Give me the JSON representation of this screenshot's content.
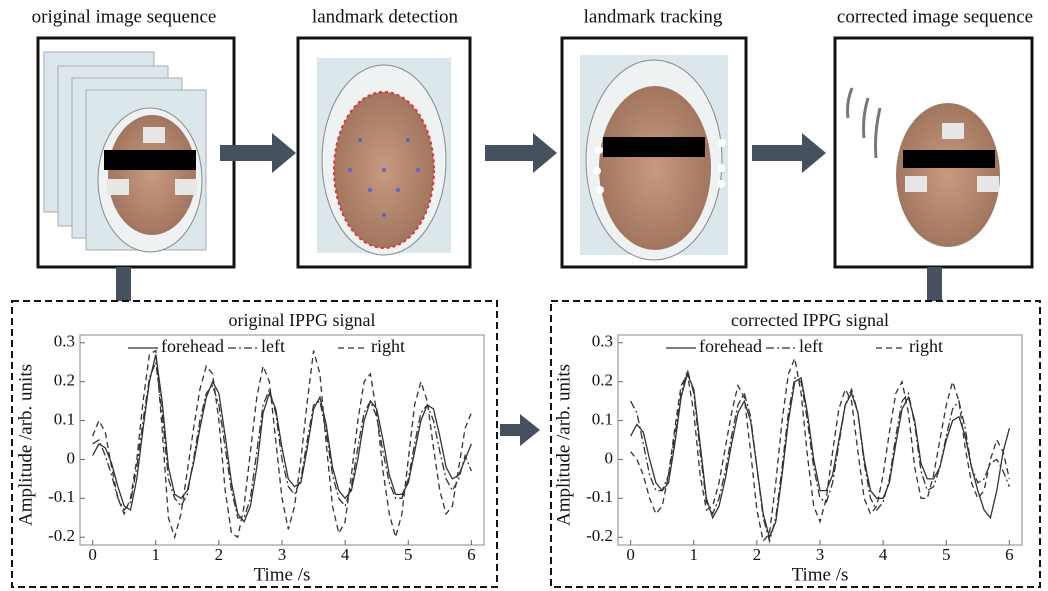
{
  "stages": [
    "original image sequence",
    "landmark detection",
    "landmark tracking",
    "corrected image sequence"
  ],
  "chart_data": [
    {
      "type": "line",
      "title": "original IPPG signal",
      "xlabel": "Time /s",
      "ylabel": "Amplitude /arb. units",
      "xlim": [
        -0.2,
        6.2
      ],
      "ylim": [
        -0.22,
        0.32
      ],
      "xticks": [
        0,
        1,
        2,
        3,
        4,
        5,
        6
      ],
      "yticks": [
        -0.2,
        -0.1,
        0,
        0.1,
        0.2,
        0.3
      ],
      "x": [
        0,
        0.1,
        0.2,
        0.3,
        0.4,
        0.5,
        0.6,
        0.7,
        0.8,
        0.9,
        1,
        1.1,
        1.2,
        1.3,
        1.4,
        1.5,
        1.6,
        1.7,
        1.8,
        1.9,
        2,
        2.1,
        2.2,
        2.3,
        2.4,
        2.5,
        2.6,
        2.7,
        2.8,
        2.9,
        3,
        3.1,
        3.2,
        3.3,
        3.4,
        3.5,
        3.6,
        3.7,
        3.8,
        3.9,
        4,
        4.1,
        4.2,
        4.3,
        4.4,
        4.5,
        4.6,
        4.7,
        4.8,
        4.9,
        5,
        5.1,
        5.2,
        5.3,
        5.4,
        5.5,
        5.6,
        5.7,
        5.8,
        5.9,
        6
      ],
      "series": [
        {
          "name": "forehead",
          "color": "#333333",
          "linestyle": "solid",
          "values": [
            0.01,
            0.04,
            0.03,
            -0.01,
            -0.07,
            -0.12,
            -0.13,
            -0.05,
            0.08,
            0.2,
            0.27,
            0.15,
            -0.02,
            -0.09,
            -0.1,
            -0.08,
            -0.01,
            0.08,
            0.16,
            0.2,
            0.17,
            0.06,
            -0.06,
            -0.14,
            -0.16,
            -0.12,
            -0.02,
            0.12,
            0.17,
            0.13,
            0.03,
            -0.05,
            -0.07,
            -0.06,
            0.03,
            0.13,
            0.16,
            0.09,
            -0.02,
            -0.08,
            -0.1,
            -0.08,
            0,
            0.1,
            0.15,
            0.13,
            0.05,
            -0.04,
            -0.09,
            -0.09,
            -0.06,
            0.02,
            0.1,
            0.14,
            0.13,
            0.06,
            -0.02,
            -0.05,
            -0.04,
            0,
            0.04
          ]
        },
        {
          "name": "left",
          "color": "#333333",
          "linestyle": "dashdot",
          "values": [
            0.04,
            0.05,
            0.01,
            -0.04,
            -0.1,
            -0.13,
            -0.11,
            -0.02,
            0.1,
            0.21,
            0.25,
            0.12,
            -0.05,
            -0.1,
            -0.12,
            -0.09,
            0,
            0.1,
            0.17,
            0.19,
            0.14,
            0.03,
            -0.08,
            -0.15,
            -0.15,
            -0.1,
            0.02,
            0.14,
            0.18,
            0.12,
            0,
            -0.07,
            -0.09,
            -0.05,
            0.05,
            0.14,
            0.15,
            0.07,
            -0.04,
            -0.1,
            -0.12,
            -0.07,
            0.03,
            0.12,
            0.15,
            0.11,
            0.02,
            -0.06,
            -0.1,
            -0.1,
            -0.05,
            0.04,
            0.12,
            0.14,
            0.1,
            0.02,
            -0.05,
            -0.08,
            -0.05,
            0.01,
            -0.03
          ]
        },
        {
          "name": "right",
          "color": "#333333",
          "linestyle": "dashed",
          "values": [
            0.06,
            0.1,
            0.07,
            -0.02,
            -0.1,
            -0.14,
            -0.1,
            0,
            0.15,
            0.27,
            0.28,
            0.08,
            -0.15,
            -0.2,
            -0.14,
            -0.03,
            0.08,
            0.18,
            0.24,
            0.22,
            0.1,
            -0.08,
            -0.19,
            -0.2,
            -0.12,
            0.02,
            0.16,
            0.24,
            0.2,
            0.05,
            -0.1,
            -0.18,
            -0.12,
            0,
            0.15,
            0.28,
            0.22,
            0.04,
            -0.12,
            -0.19,
            -0.16,
            -0.04,
            0.1,
            0.2,
            0.22,
            0.12,
            -0.03,
            -0.14,
            -0.2,
            -0.14,
            0,
            0.14,
            0.2,
            0.15,
            0.03,
            -0.08,
            -0.14,
            -0.12,
            -0.02,
            0.08,
            0.12
          ]
        }
      ]
    },
    {
      "type": "line",
      "title": "corrected IPPG signal",
      "xlabel": "Time /s",
      "ylabel": "Amplitude /arb. units",
      "xlim": [
        -0.2,
        6.2
      ],
      "ylim": [
        -0.22,
        0.32
      ],
      "xticks": [
        0,
        1,
        2,
        3,
        4,
        5,
        6
      ],
      "yticks": [
        -0.2,
        -0.1,
        0,
        0.1,
        0.2,
        0.3
      ],
      "x": [
        0,
        0.1,
        0.2,
        0.3,
        0.4,
        0.5,
        0.6,
        0.7,
        0.8,
        0.9,
        1,
        1.1,
        1.2,
        1.3,
        1.4,
        1.5,
        1.6,
        1.7,
        1.8,
        1.9,
        2,
        2.1,
        2.2,
        2.3,
        2.4,
        2.5,
        2.6,
        2.7,
        2.8,
        2.9,
        3,
        3.1,
        3.2,
        3.3,
        3.4,
        3.5,
        3.6,
        3.7,
        3.8,
        3.9,
        4,
        4.1,
        4.2,
        4.3,
        4.4,
        4.5,
        4.6,
        4.7,
        4.8,
        4.9,
        5,
        5.1,
        5.2,
        5.3,
        5.4,
        5.5,
        5.6,
        5.7,
        5.8,
        5.9,
        6
      ],
      "series": [
        {
          "name": "forehead",
          "color": "#333333",
          "linestyle": "solid",
          "values": [
            0.06,
            0.09,
            0.07,
            0,
            -0.06,
            -0.08,
            -0.06,
            0.04,
            0.16,
            0.22,
            0.18,
            0.04,
            -0.1,
            -0.15,
            -0.12,
            -0.05,
            0.04,
            0.12,
            0.15,
            0.1,
            -0.02,
            -0.14,
            -0.2,
            -0.16,
            -0.04,
            0.1,
            0.2,
            0.21,
            0.12,
            0,
            -0.08,
            -0.08,
            -0.04,
            0.05,
            0.14,
            0.17,
            0.12,
            0,
            -0.08,
            -0.1,
            -0.1,
            -0.06,
            0.04,
            0.13,
            0.16,
            0.1,
            -0.01,
            -0.05,
            -0.05,
            -0.02,
            0.05,
            0.1,
            0.11,
            0.06,
            -0.02,
            -0.08,
            -0.13,
            -0.15,
            -0.08,
            0.02,
            0.08
          ]
        },
        {
          "name": "left",
          "color": "#333333",
          "linestyle": "dashdot",
          "values": [
            0.15,
            0.12,
            0.04,
            -0.04,
            -0.08,
            -0.08,
            -0.04,
            0.06,
            0.17,
            0.23,
            0.17,
            0.02,
            -0.11,
            -0.14,
            -0.1,
            -0.03,
            0.06,
            0.14,
            0.17,
            0.11,
            -0.02,
            -0.15,
            -0.21,
            -0.15,
            -0.02,
            0.12,
            0.21,
            0.2,
            0.1,
            -0.02,
            -0.1,
            -0.11,
            -0.06,
            0.04,
            0.14,
            0.18,
            0.12,
            -0.01,
            -0.1,
            -0.13,
            -0.11,
            -0.05,
            0.06,
            0.15,
            0.17,
            0.09,
            -0.03,
            -0.08,
            -0.07,
            -0.02,
            0.06,
            0.13,
            0.15,
            0.08,
            -0.02,
            -0.06,
            -0.05,
            -0.01,
            0,
            -0.03,
            -0.07
          ]
        },
        {
          "name": "right",
          "color": "#333333",
          "linestyle": "dashed",
          "values": [
            0.02,
            0,
            -0.04,
            -0.1,
            -0.14,
            -0.12,
            -0.04,
            0.08,
            0.19,
            0.22,
            0.12,
            -0.04,
            -0.13,
            -0.12,
            -0.06,
            0.03,
            0.12,
            0.19,
            0.16,
            0.02,
            -0.13,
            -0.21,
            -0.19,
            -0.06,
            0.1,
            0.22,
            0.26,
            0.17,
            0.01,
            -0.12,
            -0.16,
            -0.1,
            0.02,
            0.13,
            0.18,
            0.15,
            0.02,
            -0.1,
            -0.14,
            -0.12,
            -0.04,
            0.07,
            0.17,
            0.2,
            0.12,
            -0.02,
            -0.1,
            -0.1,
            -0.04,
            0.05,
            0.14,
            0.2,
            0.15,
            0.03,
            -0.06,
            -0.1,
            -0.08,
            0,
            0.05,
            0.02,
            -0.05
          ]
        }
      ]
    }
  ]
}
